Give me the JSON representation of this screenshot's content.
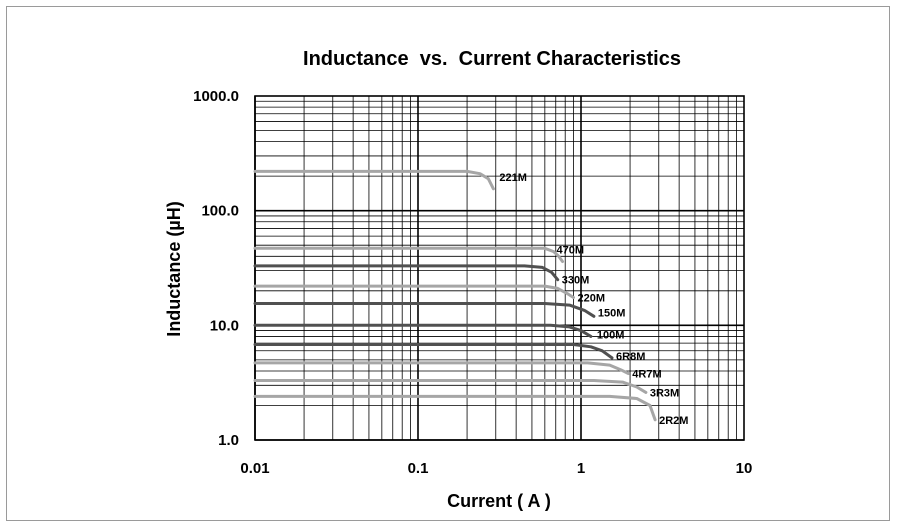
{
  "chart_data": {
    "type": "line",
    "title": "Inductance  vs.  Current Characteristics",
    "xlabel": "Current ( A )",
    "ylabel": "Inductance (µH)",
    "x_scale": "log",
    "y_scale": "log",
    "xlim": [
      0.01,
      10
    ],
    "ylim": [
      1,
      1000
    ],
    "x_tick_labels": [
      "0.01",
      "0.1",
      "1",
      "10"
    ],
    "y_tick_labels": [
      "1000.0",
      "100.0",
      "10.0",
      "1.0"
    ],
    "grid": true,
    "legend": "none (series labeled inline)",
    "colors": {
      "dark": "#505050",
      "light": "#a6a6a6",
      "grid": "#000000",
      "frame": "#9a9a9a"
    },
    "series": [
      {
        "name": "221M",
        "color": "light",
        "points": [
          [
            0.01,
            220
          ],
          [
            0.2,
            220
          ],
          [
            0.24,
            210
          ],
          [
            0.27,
            190
          ],
          [
            0.29,
            155
          ]
        ]
      },
      {
        "name": "470M",
        "color": "light",
        "points": [
          [
            0.01,
            47
          ],
          [
            0.6,
            47
          ],
          [
            0.68,
            44
          ],
          [
            0.73,
            40
          ],
          [
            0.77,
            36
          ]
        ]
      },
      {
        "name": "330M",
        "color": "dark",
        "points": [
          [
            0.01,
            33
          ],
          [
            0.45,
            33
          ],
          [
            0.58,
            32
          ],
          [
            0.66,
            29
          ],
          [
            0.72,
            25
          ]
        ]
      },
      {
        "name": "220M",
        "color": "light",
        "points": [
          [
            0.01,
            22
          ],
          [
            0.6,
            22
          ],
          [
            0.72,
            21
          ],
          [
            0.82,
            19
          ],
          [
            0.9,
            17.5
          ]
        ]
      },
      {
        "name": "150M",
        "color": "dark",
        "points": [
          [
            0.01,
            15.5
          ],
          [
            0.6,
            15.5
          ],
          [
            0.85,
            15
          ],
          [
            1.05,
            13.5
          ],
          [
            1.2,
            12
          ]
        ]
      },
      {
        "name": "100M",
        "color": "dark",
        "points": [
          [
            0.01,
            10
          ],
          [
            0.65,
            10
          ],
          [
            0.85,
            9.7
          ],
          [
            1.0,
            9
          ],
          [
            1.15,
            8
          ]
        ]
      },
      {
        "name": "6R8M",
        "color": "dark",
        "points": [
          [
            0.01,
            6.8
          ],
          [
            0.9,
            6.8
          ],
          [
            1.15,
            6.5
          ],
          [
            1.35,
            6
          ],
          [
            1.55,
            5.2
          ]
        ]
      },
      {
        "name": "4R7M",
        "color": "light",
        "points": [
          [
            0.01,
            4.7
          ],
          [
            1.1,
            4.7
          ],
          [
            1.5,
            4.5
          ],
          [
            1.75,
            4.1
          ],
          [
            1.95,
            3.8
          ]
        ]
      },
      {
        "name": "3R3M",
        "color": "light",
        "points": [
          [
            0.01,
            3.3
          ],
          [
            1.2,
            3.3
          ],
          [
            1.8,
            3.2
          ],
          [
            2.2,
            2.9
          ],
          [
            2.5,
            2.6
          ]
        ]
      },
      {
        "name": "2R2M",
        "color": "light",
        "points": [
          [
            0.01,
            2.4
          ],
          [
            1.5,
            2.4
          ],
          [
            2.2,
            2.3
          ],
          [
            2.65,
            2.0
          ],
          [
            2.85,
            1.5
          ]
        ]
      }
    ]
  }
}
